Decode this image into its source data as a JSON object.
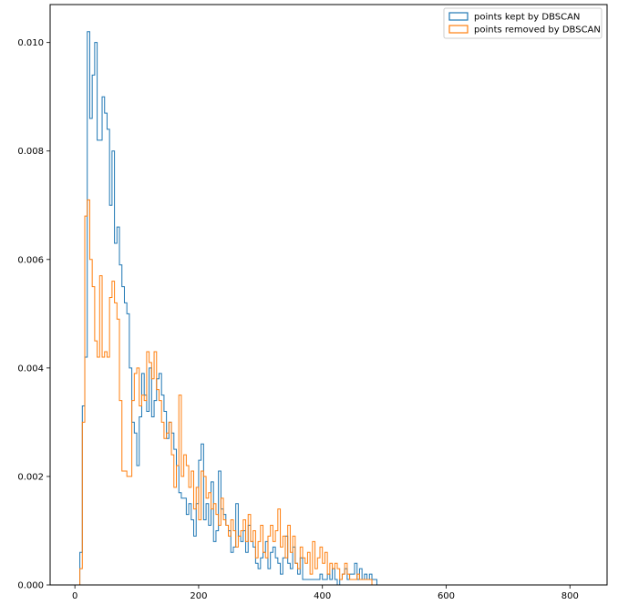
{
  "chart_data": {
    "type": "histogram",
    "title": "",
    "xlabel": "",
    "ylabel": "",
    "xlim": [
      -40,
      860
    ],
    "ylim": [
      0,
      0.0107
    ],
    "grid": false,
    "legend_placement": "top-right",
    "x_ticks": [
      0,
      200,
      400,
      600,
      800
    ],
    "y_ticks": [
      0.0,
      0.002,
      0.004,
      0.006,
      0.008,
      0.01
    ],
    "x_tick_labels": [
      "0",
      "200",
      "400",
      "600",
      "800"
    ],
    "y_tick_labels": [
      "0.000",
      "0.002",
      "0.004",
      "0.006",
      "0.008",
      "0.010"
    ],
    "histtype": "step",
    "series": [
      {
        "name": "points kept by DBSCAN",
        "color": "#1f77b4",
        "bin_width": 4,
        "start": 8,
        "values": [
          0.0006,
          0.0033,
          0.0042,
          0.0102,
          0.0086,
          0.0094,
          0.01,
          0.0082,
          0.0082,
          0.009,
          0.0087,
          0.0084,
          0.007,
          0.008,
          0.0063,
          0.0066,
          0.0059,
          0.0055,
          0.0052,
          0.005,
          0.004,
          0.003,
          0.0028,
          0.0022,
          0.0031,
          0.0039,
          0.0035,
          0.0032,
          0.004,
          0.0031,
          0.0034,
          0.0038,
          0.0039,
          0.0035,
          0.0032,
          0.0027,
          0.003,
          0.0028,
          0.0025,
          0.0022,
          0.0017,
          0.0016,
          0.0016,
          0.0013,
          0.0015,
          0.0012,
          0.0009,
          0.0015,
          0.0023,
          0.0026,
          0.0012,
          0.0015,
          0.0011,
          0.0019,
          0.0008,
          0.001,
          0.0021,
          0.0014,
          0.0013,
          0.0011,
          0.001,
          0.0006,
          0.0007,
          0.0015,
          0.0009,
          0.0008,
          0.001,
          0.0006,
          0.0011,
          0.0008,
          0.0007,
          0.0004,
          0.0003,
          0.0005,
          0.0006,
          0.0008,
          0.0003,
          0.0006,
          0.0007,
          0.0005,
          0.0004,
          0.0002,
          0.0005,
          0.0009,
          0.0004,
          0.0003,
          0.0007,
          0.0004,
          0.0002,
          0.0005,
          0.0001,
          0.0001,
          0.0001,
          0.0001,
          0.0001,
          0.0001,
          0.0001,
          0.0002,
          0.0001,
          0.0001,
          0.0002,
          0.0001,
          0.0003,
          0.0001,
          0.0,
          0.0001,
          0.0002,
          0.0003,
          0.0001,
          0.0002,
          0.0002,
          0.0004,
          0.0001,
          0.0003,
          0.0001,
          0.0002,
          0.0001,
          0.0002,
          0.0001,
          0.0001
        ]
      },
      {
        "name": "points removed by DBSCAN",
        "color": "#ff7f0e",
        "bin_width": 4,
        "start": 0,
        "values": [
          0.0,
          0.0,
          0.0003,
          0.003,
          0.0068,
          0.0071,
          0.006,
          0.0055,
          0.0045,
          0.0042,
          0.0057,
          0.0042,
          0.0043,
          0.0042,
          0.0053,
          0.0056,
          0.0052,
          0.0049,
          0.0034,
          0.0021,
          0.0021,
          0.002,
          0.002,
          0.0034,
          0.0039,
          0.004,
          0.0033,
          0.0035,
          0.0034,
          0.0043,
          0.0041,
          0.0038,
          0.0043,
          0.0036,
          0.0034,
          0.003,
          0.0027,
          0.0028,
          0.003,
          0.0024,
          0.0018,
          0.0022,
          0.0035,
          0.002,
          0.0024,
          0.0022,
          0.0018,
          0.0021,
          0.0014,
          0.0018,
          0.0012,
          0.0021,
          0.002,
          0.0016,
          0.0017,
          0.0014,
          0.0015,
          0.0013,
          0.0011,
          0.0016,
          0.0012,
          0.0011,
          0.0009,
          0.0012,
          0.001,
          0.0007,
          0.0009,
          0.001,
          0.0012,
          0.0008,
          0.0013,
          0.0008,
          0.001,
          0.0005,
          0.0008,
          0.0011,
          0.0006,
          0.0005,
          0.0009,
          0.0011,
          0.0008,
          0.001,
          0.0014,
          0.0007,
          0.0009,
          0.0005,
          0.0011,
          0.0006,
          0.0009,
          0.0004,
          0.0003,
          0.0007,
          0.0005,
          0.0004,
          0.0006,
          0.0002,
          0.0008,
          0.0003,
          0.0005,
          0.0007,
          0.0004,
          0.0006,
          0.0002,
          0.0004,
          0.0003,
          0.0004,
          0.0003,
          0.0001,
          0.0002,
          0.0004,
          0.0002,
          0.0001,
          0.0001,
          0.0001,
          0.0002,
          0.0001,
          0.0001,
          0.0001,
          0.0001,
          0.0001
        ]
      }
    ]
  }
}
